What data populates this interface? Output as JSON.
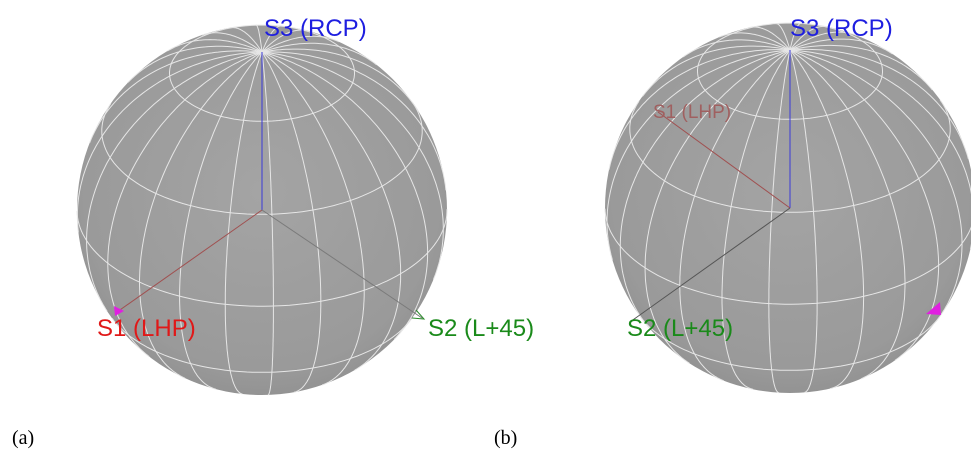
{
  "panels": [
    {
      "caption": "(a)",
      "labels": {
        "s3": "S3 (RCP)",
        "s1": "S1 (LHP)",
        "s2": "S2 (L+45)"
      }
    },
    {
      "caption": "(b)",
      "labels": {
        "s3": "S3 (RCP)",
        "s1": "S1 (LHP)",
        "s2": "S2 (L+45)"
      }
    }
  ]
}
